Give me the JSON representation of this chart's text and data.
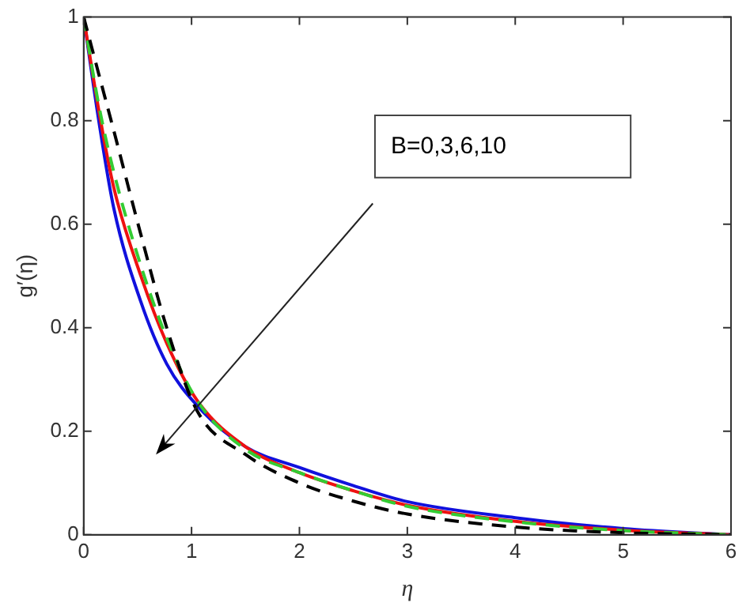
{
  "chart_data": {
    "type": "line",
    "xlabel": "η",
    "ylabel": "g′(η)",
    "xlim": [
      0,
      6
    ],
    "xticks": [
      0,
      1,
      2,
      3,
      4,
      5,
      6
    ],
    "ylim": [
      0,
      1
    ],
    "yticks": [
      0,
      0.2,
      0.4,
      0.6,
      0.8,
      1
    ],
    "x": [
      0,
      0.14,
      0.28,
      0.53,
      0.77,
      1.05,
      1.5,
      2,
      2.5,
      3,
      4,
      5,
      6
    ],
    "series": [
      {
        "color": "#000000",
        "line_style": "dashed",
        "values": [
          1,
          0.89,
          0.78,
          0.58,
          0.4,
          0.24,
          0.155,
          0.1,
          0.065,
          0.04,
          0.015,
          0.004,
          0
        ]
      },
      {
        "color": "#33cc33",
        "line_style": "dashed",
        "values": [
          1,
          0.83,
          0.7,
          0.52,
          0.38,
          0.26,
          0.165,
          0.12,
          0.085,
          0.055,
          0.025,
          0.008,
          0
        ]
      },
      {
        "color": "#ee1111",
        "line_style": "solid",
        "values": [
          1,
          0.82,
          0.67,
          0.5,
          0.37,
          0.26,
          0.17,
          0.12,
          0.085,
          0.057,
          0.026,
          0.009,
          0
        ]
      },
      {
        "color": "#1111dd",
        "line_style": "solid",
        "values": [
          1,
          0.8,
          0.63,
          0.45,
          0.33,
          0.25,
          0.17,
          0.13,
          0.095,
          0.064,
          0.033,
          0.012,
          0
        ]
      }
    ],
    "annotations": [
      "B=0,3,6,10"
    ],
    "grid": false,
    "legend": false,
    "marker": "none"
  }
}
